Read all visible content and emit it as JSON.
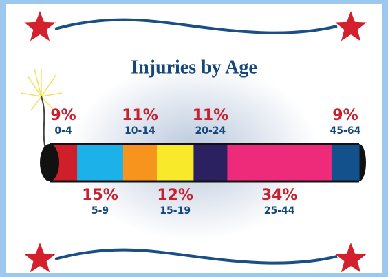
{
  "chart_data": {
    "type": "stacked-bar",
    "title": "Injuries by Age",
    "categories": [
      "0-4",
      "5-9",
      "10-14",
      "15-19",
      "20-24",
      "25-44",
      "45-64"
    ],
    "values": [
      9,
      15,
      11,
      12,
      11,
      34,
      9
    ],
    "value_labels": [
      "9%",
      "15%",
      "11%",
      "12%",
      "11%",
      "34%",
      "9%"
    ],
    "colors": [
      "#cf1f2b",
      "#1cb1e8",
      "#f7941d",
      "#f8ea2b",
      "#2b2160",
      "#ee2a7b",
      "#12518c"
    ]
  }
}
